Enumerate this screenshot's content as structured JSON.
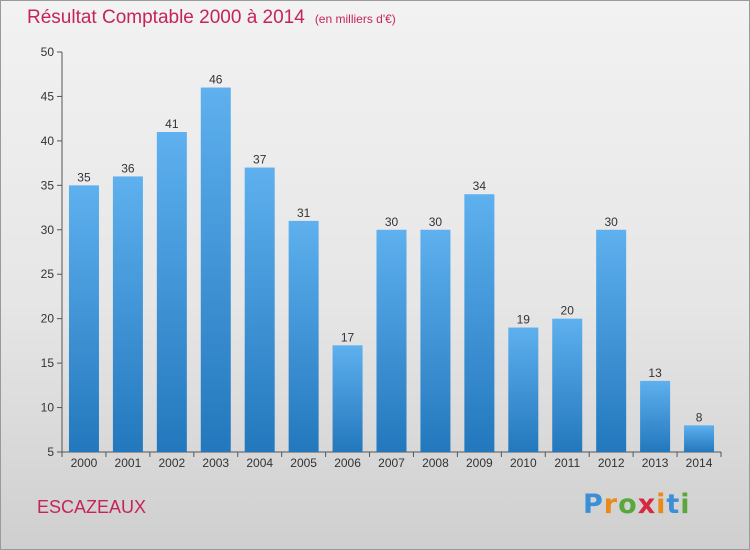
{
  "header": {
    "title": "Résultat Comptable 2000 à 2014",
    "subtitle": "(en milliers d'€)"
  },
  "commune": "ESCAZEAUX",
  "logo": {
    "letters": [
      "P",
      "r",
      "o",
      "x",
      "i",
      "t",
      "i"
    ],
    "colors": [
      "#3b8fd6",
      "#e98a1a",
      "#5aa83d",
      "#d6283e",
      "#e98a1a",
      "#3b8fd6",
      "#5aa83d"
    ]
  },
  "colors": {
    "bar_top": "#5eb0ee",
    "bar_bottom": "#2378bd",
    "title": "#c5245a"
  },
  "chart_data": {
    "type": "bar",
    "title": "Résultat Comptable 2000 à 2014",
    "subtitle": "(en milliers d'€)",
    "xlabel": "",
    "ylabel": "",
    "categories": [
      "2000",
      "2001",
      "2002",
      "2003",
      "2004",
      "2005",
      "2006",
      "2007",
      "2008",
      "2009",
      "2010",
      "2011",
      "2012",
      "2013",
      "2014"
    ],
    "values": [
      35,
      36,
      41,
      46,
      37,
      31,
      17,
      30,
      30,
      34,
      19,
      20,
      30,
      13,
      8
    ],
    "ylim": [
      5,
      50
    ],
    "yticks": [
      5,
      10,
      15,
      20,
      25,
      30,
      35,
      40,
      45,
      50
    ],
    "grid": false,
    "legend": "none"
  }
}
